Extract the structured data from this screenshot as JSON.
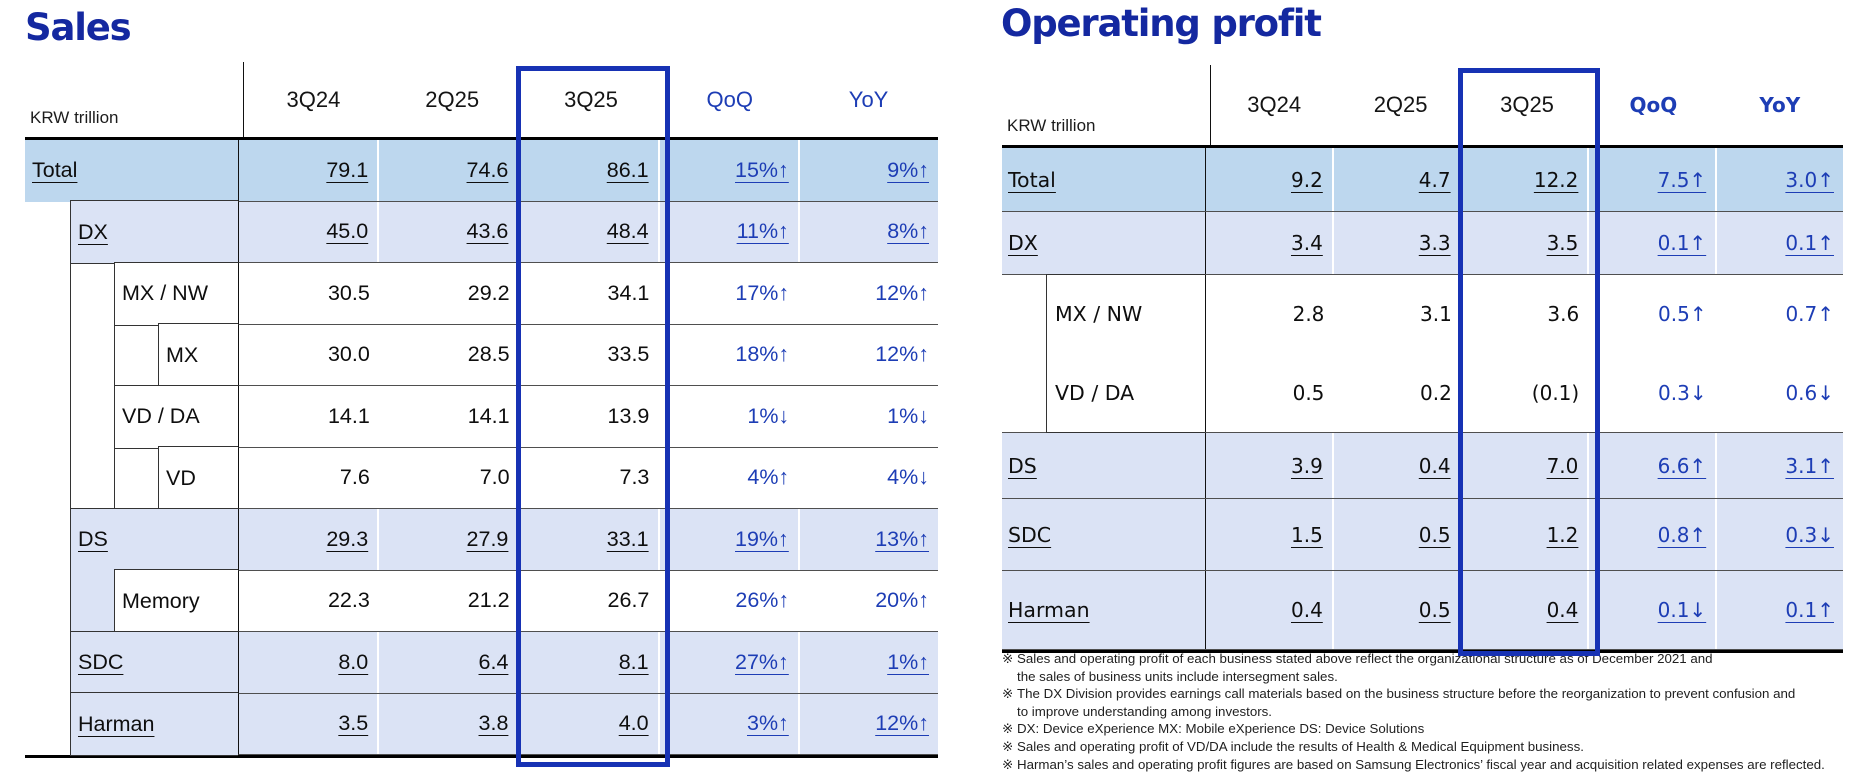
{
  "colors": {
    "title": "#1428a0",
    "blue": "#1d3db5",
    "box": "#1732b4",
    "totbg": "#bdd7ee",
    "bandbg": "#dbe3f5"
  },
  "sales": {
    "title": "Sales",
    "unit": "KRW trillion",
    "headers": {
      "c1": "3Q24",
      "c2": "2Q25",
      "c3": "3Q25",
      "qoq": "QoQ",
      "yoy": "YoY"
    },
    "rows": [
      {
        "label": "Total",
        "v1": "79.1",
        "v2": "74.6",
        "v3": "86.1",
        "qoq": "15%↑",
        "yoy": "9%↑"
      },
      {
        "label": "DX",
        "v1": "45.0",
        "v2": "43.6",
        "v3": "48.4",
        "qoq": "11%↑",
        "yoy": "8%↑"
      },
      {
        "label": "MX / NW",
        "v1": "30.5",
        "v2": "29.2",
        "v3": "34.1",
        "qoq": "17%↑",
        "yoy": "12%↑"
      },
      {
        "label": "MX",
        "v1": "30.0",
        "v2": "28.5",
        "v3": "33.5",
        "qoq": "18%↑",
        "yoy": "12%↑"
      },
      {
        "label": "VD / DA",
        "v1": "14.1",
        "v2": "14.1",
        "v3": "13.9",
        "qoq": "1%↓",
        "yoy": "1%↓"
      },
      {
        "label": "VD",
        "v1": "7.6",
        "v2": "7.0",
        "v3": "7.3",
        "qoq": "4%↑",
        "yoy": "4%↓"
      },
      {
        "label": "DS",
        "v1": "29.3",
        "v2": "27.9",
        "v3": "33.1",
        "qoq": "19%↑",
        "yoy": "13%↑"
      },
      {
        "label": "Memory",
        "v1": "22.3",
        "v2": "21.2",
        "v3": "26.7",
        "qoq": "26%↑",
        "yoy": "20%↑"
      },
      {
        "label": "SDC",
        "v1": "8.0",
        "v2": "6.4",
        "v3": "8.1",
        "qoq": "27%↑",
        "yoy": "1%↑"
      },
      {
        "label": "Harman",
        "v1": "3.5",
        "v2": "3.8",
        "v3": "4.0",
        "qoq": "3%↑",
        "yoy": "12%↑"
      }
    ]
  },
  "profit": {
    "title": "Operating profit",
    "unit": "KRW trillion",
    "headers": {
      "c1": "3Q24",
      "c2": "2Q25",
      "c3": "3Q25",
      "qoq": "QoQ",
      "yoy": "YoY"
    },
    "rows": [
      {
        "label": "Total",
        "v1": "9.2",
        "v2": "4.7",
        "v3": "12.2",
        "qoq": "7.5↑",
        "yoy": "3.0↑"
      },
      {
        "label": "DX",
        "v1": "3.4",
        "v2": "3.3",
        "v3": "3.5",
        "qoq": "0.1↑",
        "yoy": "0.1↑"
      },
      {
        "label": "MX / NW",
        "v1": "2.8",
        "v2": "3.1",
        "v3": "3.6",
        "qoq": "0.5↑",
        "yoy": "0.7↑"
      },
      {
        "label": "VD / DA",
        "v1": "0.5",
        "v2": "0.2",
        "v3": "(0.1)",
        "qoq": "0.3↓",
        "yoy": "0.6↓"
      },
      {
        "label": "DS",
        "v1": "3.9",
        "v2": "0.4",
        "v3": "7.0",
        "qoq": "6.6↑",
        "yoy": "3.1↑"
      },
      {
        "label": "SDC",
        "v1": "1.5",
        "v2": "0.5",
        "v3": "1.2",
        "qoq": "0.8↑",
        "yoy": "0.3↓"
      },
      {
        "label": "Harman",
        "v1": "0.4",
        "v2": "0.5",
        "v3": "0.4",
        "qoq": "0.1↓",
        "yoy": "0.1↑"
      }
    ]
  },
  "footnotes": [
    {
      "marker": "※",
      "text": "Sales and operating profit of each business stated above reflect the organizational structure  as of December 2021 and"
    },
    {
      "marker": "",
      "text": "the sales of business units include intersegment sales."
    },
    {
      "marker": "※",
      "text": "The DX Division provides earnings call materials based on the business structure before the reorganization to prevent confusion and"
    },
    {
      "marker": "",
      "text": "to improve understanding among investors."
    },
    {
      "marker": "※",
      "text": "DX: Device eXperience MX: Mobile eXperience DS: Device Solutions"
    },
    {
      "marker": "※",
      "text": "Sales and operating profit of VD/DA include the results of Health & Medical Equipment business."
    },
    {
      "marker": "※",
      "text": "Harman’s sales and operating profit figures are based on Samsung Electronics’ fiscal year and acquisition related expenses  are reflected."
    }
  ]
}
